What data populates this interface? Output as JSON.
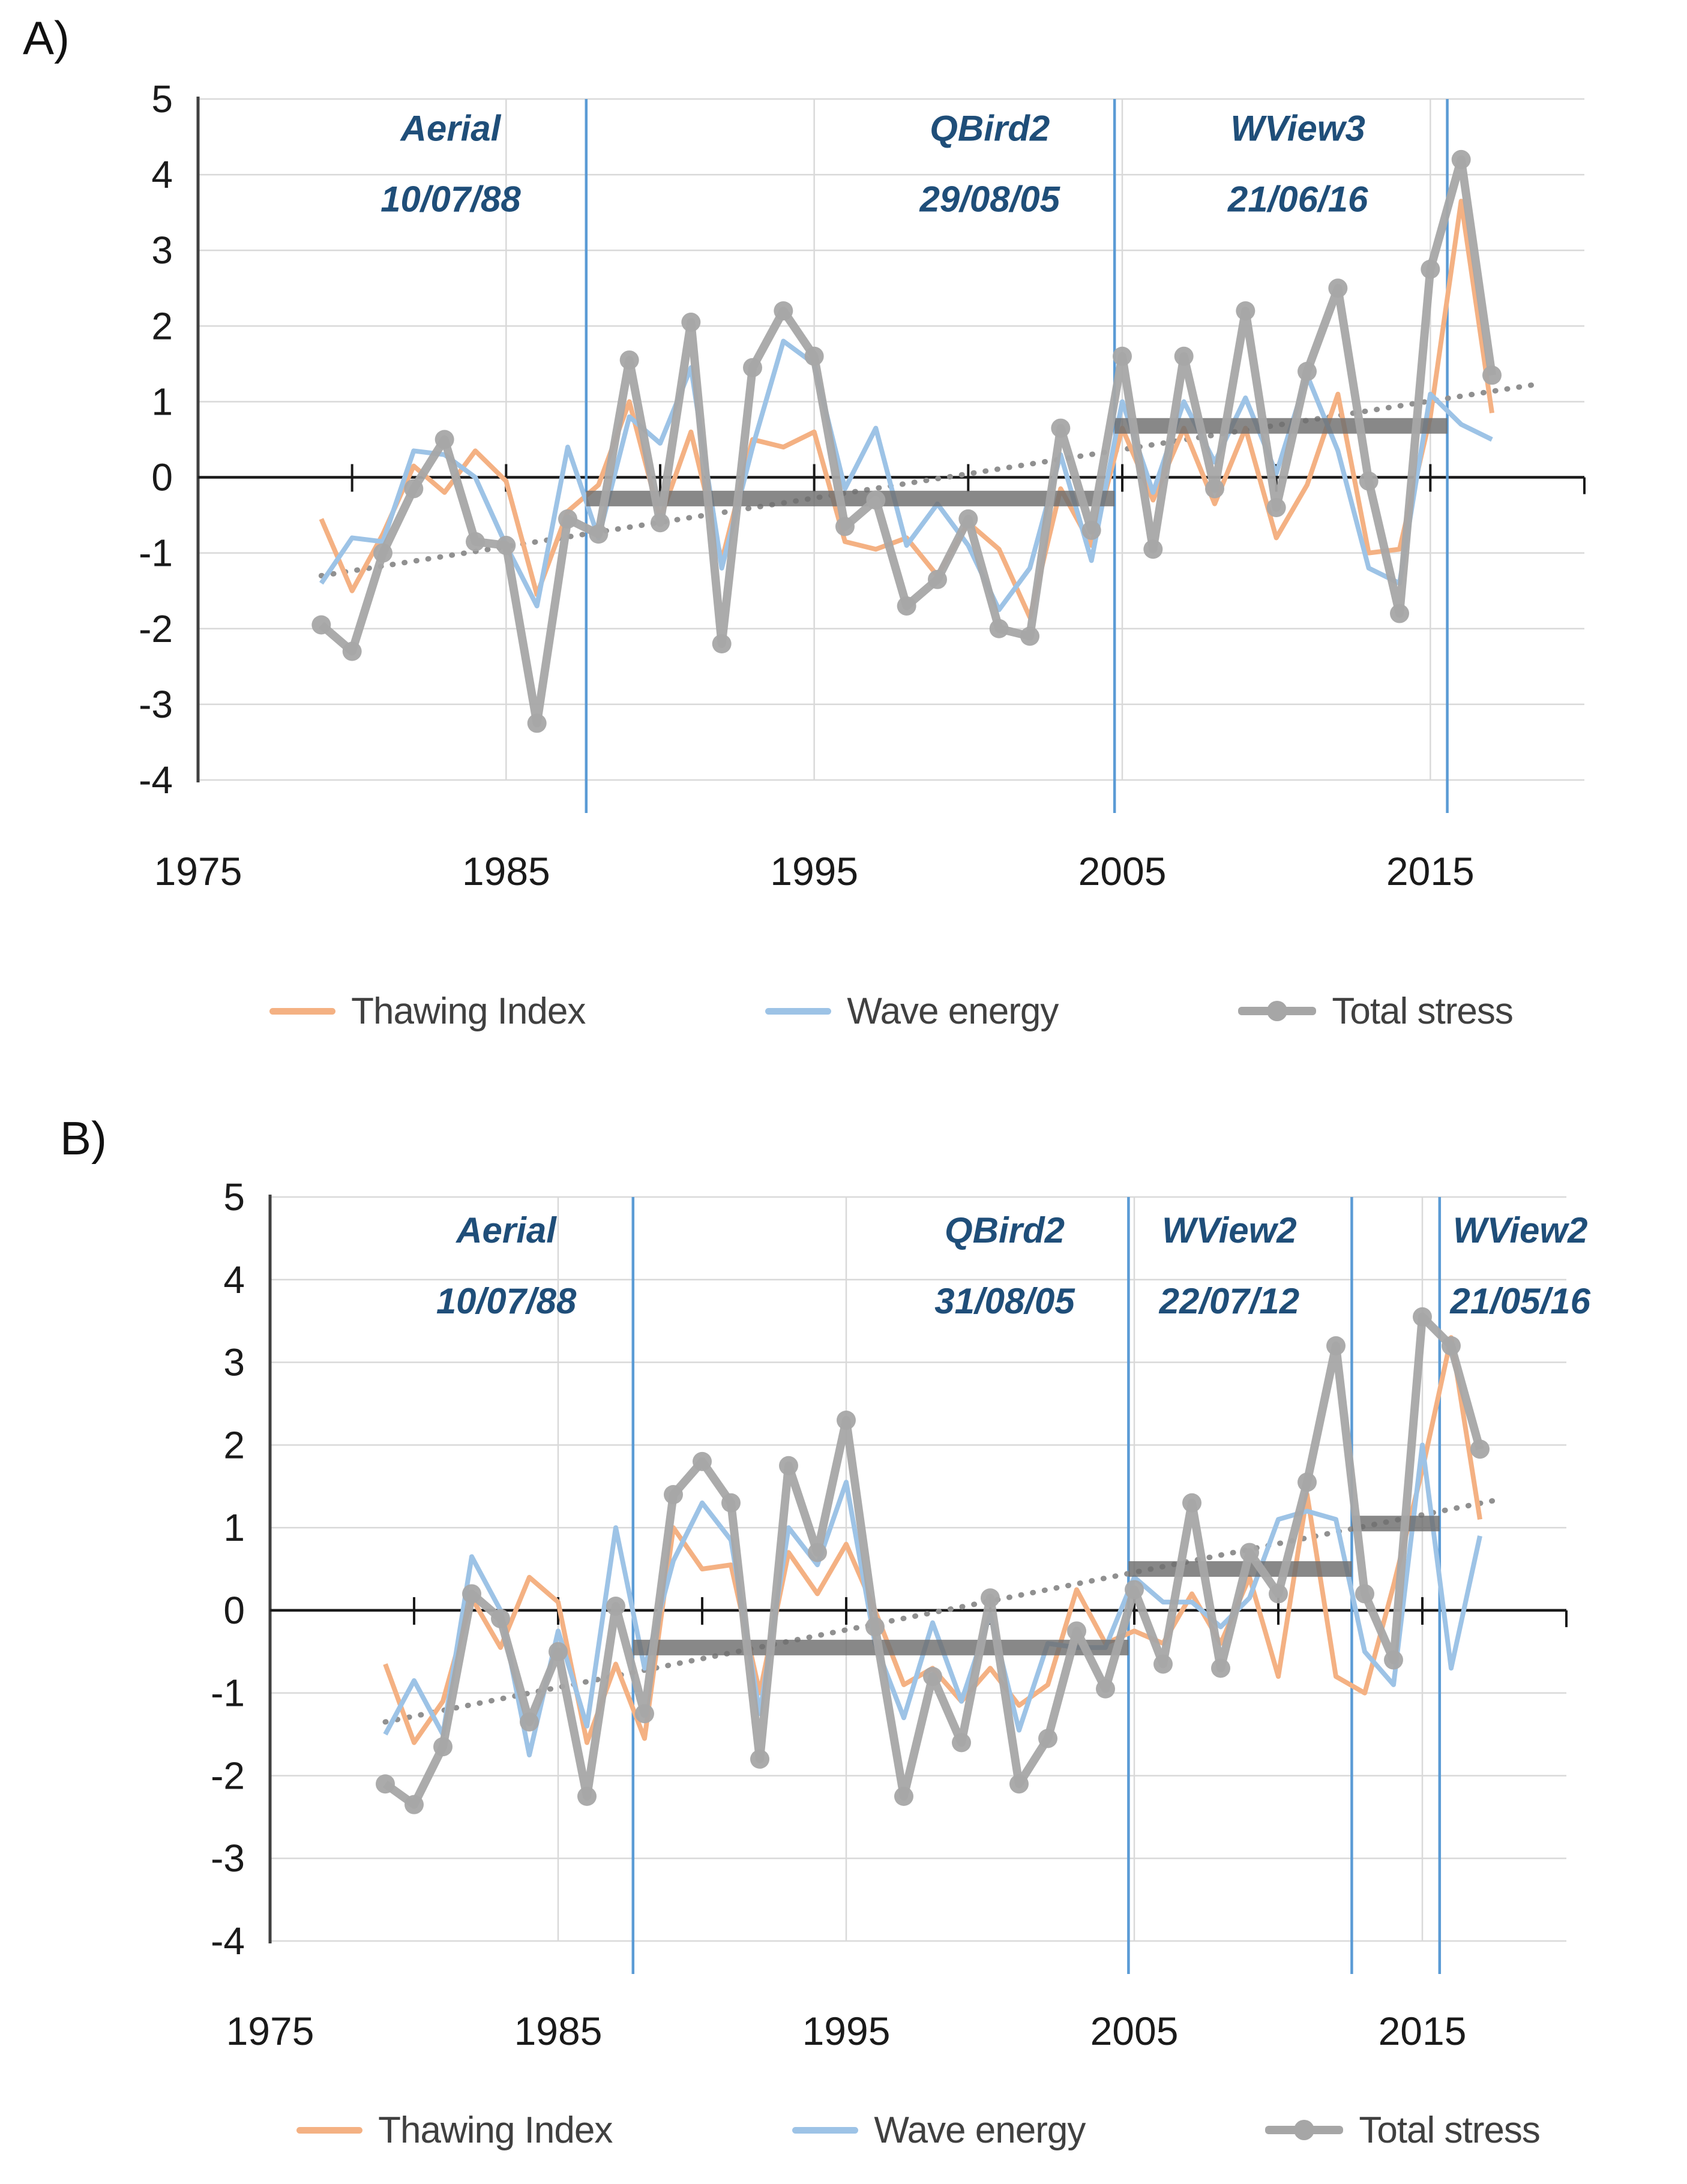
{
  "titles": {
    "a": "A)",
    "b": "B)"
  },
  "legend_labels": [
    "Thawing Index",
    "Wave energy",
    "Total stress"
  ],
  "colors": {
    "thawing": "#F4B183",
    "wave": "#9DC3E6",
    "total": "#A6A6A6",
    "mean_bar": "#6E6E6E",
    "trend": "#909090",
    "event_line": "#5B9BD5",
    "annotation_text": "#1F4E79",
    "grid": "#D9D9D9",
    "axis": "#1a1a1a",
    "tick_label": "#1a1a1a"
  },
  "chart_data": [
    {
      "type": "line",
      "id": "A",
      "x_start": 1979,
      "x": [
        1979,
        1980,
        1981,
        1982,
        1983,
        1984,
        1985,
        1986,
        1987,
        1988,
        1989,
        1990,
        1991,
        1992,
        1993,
        1994,
        1995,
        1996,
        1997,
        1998,
        1999,
        2000,
        2001,
        2002,
        2003,
        2004,
        2005,
        2006,
        2007,
        2008,
        2009,
        2010,
        2011,
        2012,
        2013,
        2014,
        2015,
        2016,
        2017
      ],
      "xlim": [
        1975,
        2020
      ],
      "ylim": [
        -4,
        5
      ],
      "y_ticks": [
        5,
        4,
        3,
        2,
        1,
        0,
        -1,
        -2,
        -3,
        -4
      ],
      "x_tick_labels": [
        1975,
        1985,
        1995,
        2005,
        2015
      ],
      "grid_years": [
        1985,
        1995,
        2005,
        2015
      ],
      "minor_tick_years": [
        1980,
        1985,
        1990,
        1995,
        2000,
        2005,
        2010,
        2015
      ],
      "series": [
        {
          "name": "Thawing Index",
          "key": "thawing",
          "values": [
            -0.55,
            -1.5,
            -0.75,
            0.15,
            -0.2,
            0.35,
            -0.05,
            -1.55,
            -0.45,
            -0.1,
            1.0,
            -0.55,
            0.6,
            -1.1,
            0.5,
            0.4,
            0.6,
            -0.85,
            -0.95,
            -0.8,
            -1.3,
            -0.6,
            -0.95,
            -1.85,
            -0.15,
            -0.9,
            0.65,
            -0.3,
            0.65,
            -0.35,
            0.65,
            -0.8,
            -0.1,
            1.1,
            -1.0,
            -0.95,
            0.8,
            3.65,
            0.85
          ]
        },
        {
          "name": "Wave energy",
          "key": "wave",
          "values": [
            -1.4,
            -0.8,
            -0.85,
            0.35,
            0.3,
            0.0,
            -0.9,
            -1.7,
            0.4,
            -0.8,
            0.8,
            0.45,
            1.45,
            -1.2,
            0.4,
            1.8,
            1.5,
            -0.15,
            0.65,
            -0.9,
            -0.35,
            -0.9,
            -1.75,
            -1.2,
            0.3,
            -1.1,
            1.0,
            -0.2,
            1.0,
            0.2,
            1.05,
            0.05,
            1.35,
            0.35,
            -1.2,
            -1.4,
            1.1,
            0.7,
            0.5
          ]
        },
        {
          "name": "Total stress",
          "key": "total",
          "marker": true,
          "values": [
            -1.95,
            -2.3,
            -1.0,
            -0.15,
            0.5,
            -0.85,
            -0.9,
            -3.25,
            -0.55,
            -0.75,
            1.55,
            -0.6,
            2.05,
            -2.2,
            1.45,
            2.2,
            1.6,
            -0.65,
            -0.3,
            -1.7,
            -1.35,
            -0.55,
            -2.0,
            -2.1,
            0.65,
            -0.7,
            1.6,
            -0.95,
            1.6,
            -0.15,
            2.2,
            -0.4,
            1.4,
            2.5,
            -0.05,
            -1.8,
            2.75,
            4.2,
            1.35
          ]
        }
      ],
      "events": [
        {
          "year": 1987.6,
          "label": [
            "Aerial",
            "10/07/88"
          ],
          "label_center_year": 1983.2
        },
        {
          "year": 2004.75,
          "label": [
            "QBird2",
            "29/08/05"
          ],
          "label_center_year": 2000.7
        },
        {
          "year": 2015.55,
          "label": [
            "WView3",
            "21/06/16"
          ],
          "label_center_year": 2010.7
        }
      ],
      "means": [
        {
          "from": 1987.6,
          "to": 2004.75,
          "value": -0.28
        },
        {
          "from": 2004.75,
          "to": 2015.55,
          "value": 0.68
        }
      ],
      "trend": {
        "x1": 1979,
        "y1": -1.3,
        "x2": 2018.3,
        "y2": 1.22
      }
    },
    {
      "type": "line",
      "id": "B",
      "x_start": 1979,
      "x": [
        1979,
        1980,
        1981,
        1982,
        1983,
        1984,
        1985,
        1986,
        1987,
        1988,
        1989,
        1990,
        1991,
        1992,
        1993,
        1994,
        1995,
        1996,
        1997,
        1998,
        1999,
        2000,
        2001,
        2002,
        2003,
        2004,
        2005,
        2006,
        2007,
        2008,
        2009,
        2010,
        2011,
        2012,
        2013,
        2014,
        2015,
        2016,
        2017
      ],
      "xlim": [
        1975,
        2020
      ],
      "ylim": [
        -4,
        5
      ],
      "y_ticks": [
        5,
        4,
        3,
        2,
        1,
        0,
        -1,
        -2,
        -3,
        -4
      ],
      "x_tick_labels": [
        1975,
        1985,
        1995,
        2005,
        2015
      ],
      "grid_years": [
        1985,
        1995,
        2005,
        2015
      ],
      "minor_tick_years": [
        1980,
        1985,
        1990,
        1995,
        2000,
        2005,
        2010,
        2015
      ],
      "series": [
        {
          "name": "Thawing Index",
          "key": "thawing",
          "values": [
            -0.65,
            -1.6,
            -1.1,
            0.15,
            -0.45,
            0.4,
            0.1,
            -1.6,
            -0.65,
            -1.55,
            1.0,
            0.5,
            0.55,
            -1.0,
            0.7,
            0.2,
            0.8,
            0.0,
            -0.9,
            -0.7,
            -1.1,
            -0.7,
            -1.15,
            -0.9,
            0.25,
            -0.4,
            -0.25,
            -0.4,
            0.2,
            -0.4,
            0.4,
            -0.8,
            1.4,
            -0.8,
            -1.0,
            0.3,
            1.7,
            3.3,
            1.1
          ]
        },
        {
          "name": "Wave energy",
          "key": "wave",
          "values": [
            -1.5,
            -0.85,
            -1.5,
            0.65,
            0.0,
            -1.75,
            -0.25,
            -1.4,
            1.0,
            -0.7,
            0.6,
            1.3,
            0.85,
            -1.25,
            1.0,
            0.55,
            1.55,
            -0.4,
            -1.3,
            -0.15,
            -1.1,
            -0.05,
            -1.45,
            -0.4,
            -0.45,
            -0.45,
            0.4,
            0.1,
            0.1,
            -0.2,
            0.15,
            1.1,
            1.2,
            1.1,
            -0.5,
            -0.9,
            2.0,
            -0.7,
            0.9
          ]
        },
        {
          "name": "Total stress",
          "key": "total",
          "marker": true,
          "values": [
            -2.1,
            -2.35,
            -1.65,
            0.2,
            -0.1,
            -1.35,
            -0.5,
            -2.25,
            0.05,
            -1.25,
            1.4,
            1.8,
            1.3,
            -1.8,
            1.75,
            0.7,
            2.3,
            -0.2,
            -2.25,
            -0.8,
            -1.6,
            0.15,
            -2.1,
            -1.55,
            -0.25,
            -0.95,
            0.25,
            -0.65,
            1.3,
            -0.7,
            0.7,
            0.2,
            1.55,
            3.2,
            0.2,
            -0.6,
            3.55,
            3.2,
            1.95
          ]
        }
      ],
      "events": [
        {
          "year": 1987.6,
          "label": [
            "Aerial",
            "10/07/88"
          ],
          "label_center_year": 1983.2
        },
        {
          "year": 2004.8,
          "label": [
            "QBird2",
            "31/08/05"
          ],
          "label_center_year": 2000.5
        },
        {
          "year": 2012.55,
          "label": [
            "WView2",
            "22/07/12"
          ],
          "label_center_year": 2008.3
        },
        {
          "year": 2015.6,
          "label": [
            "WView2",
            "21/05/16"
          ],
          "label_center_year": 2018.4
        }
      ],
      "means": [
        {
          "from": 1987.6,
          "to": 2004.8,
          "value": -0.45
        },
        {
          "from": 2004.8,
          "to": 2012.55,
          "value": 0.5
        },
        {
          "from": 2012.55,
          "to": 2015.6,
          "value": 1.05
        }
      ],
      "trend": {
        "x1": 1979,
        "y1": -1.35,
        "x2": 2017.8,
        "y2": 1.35
      }
    }
  ]
}
